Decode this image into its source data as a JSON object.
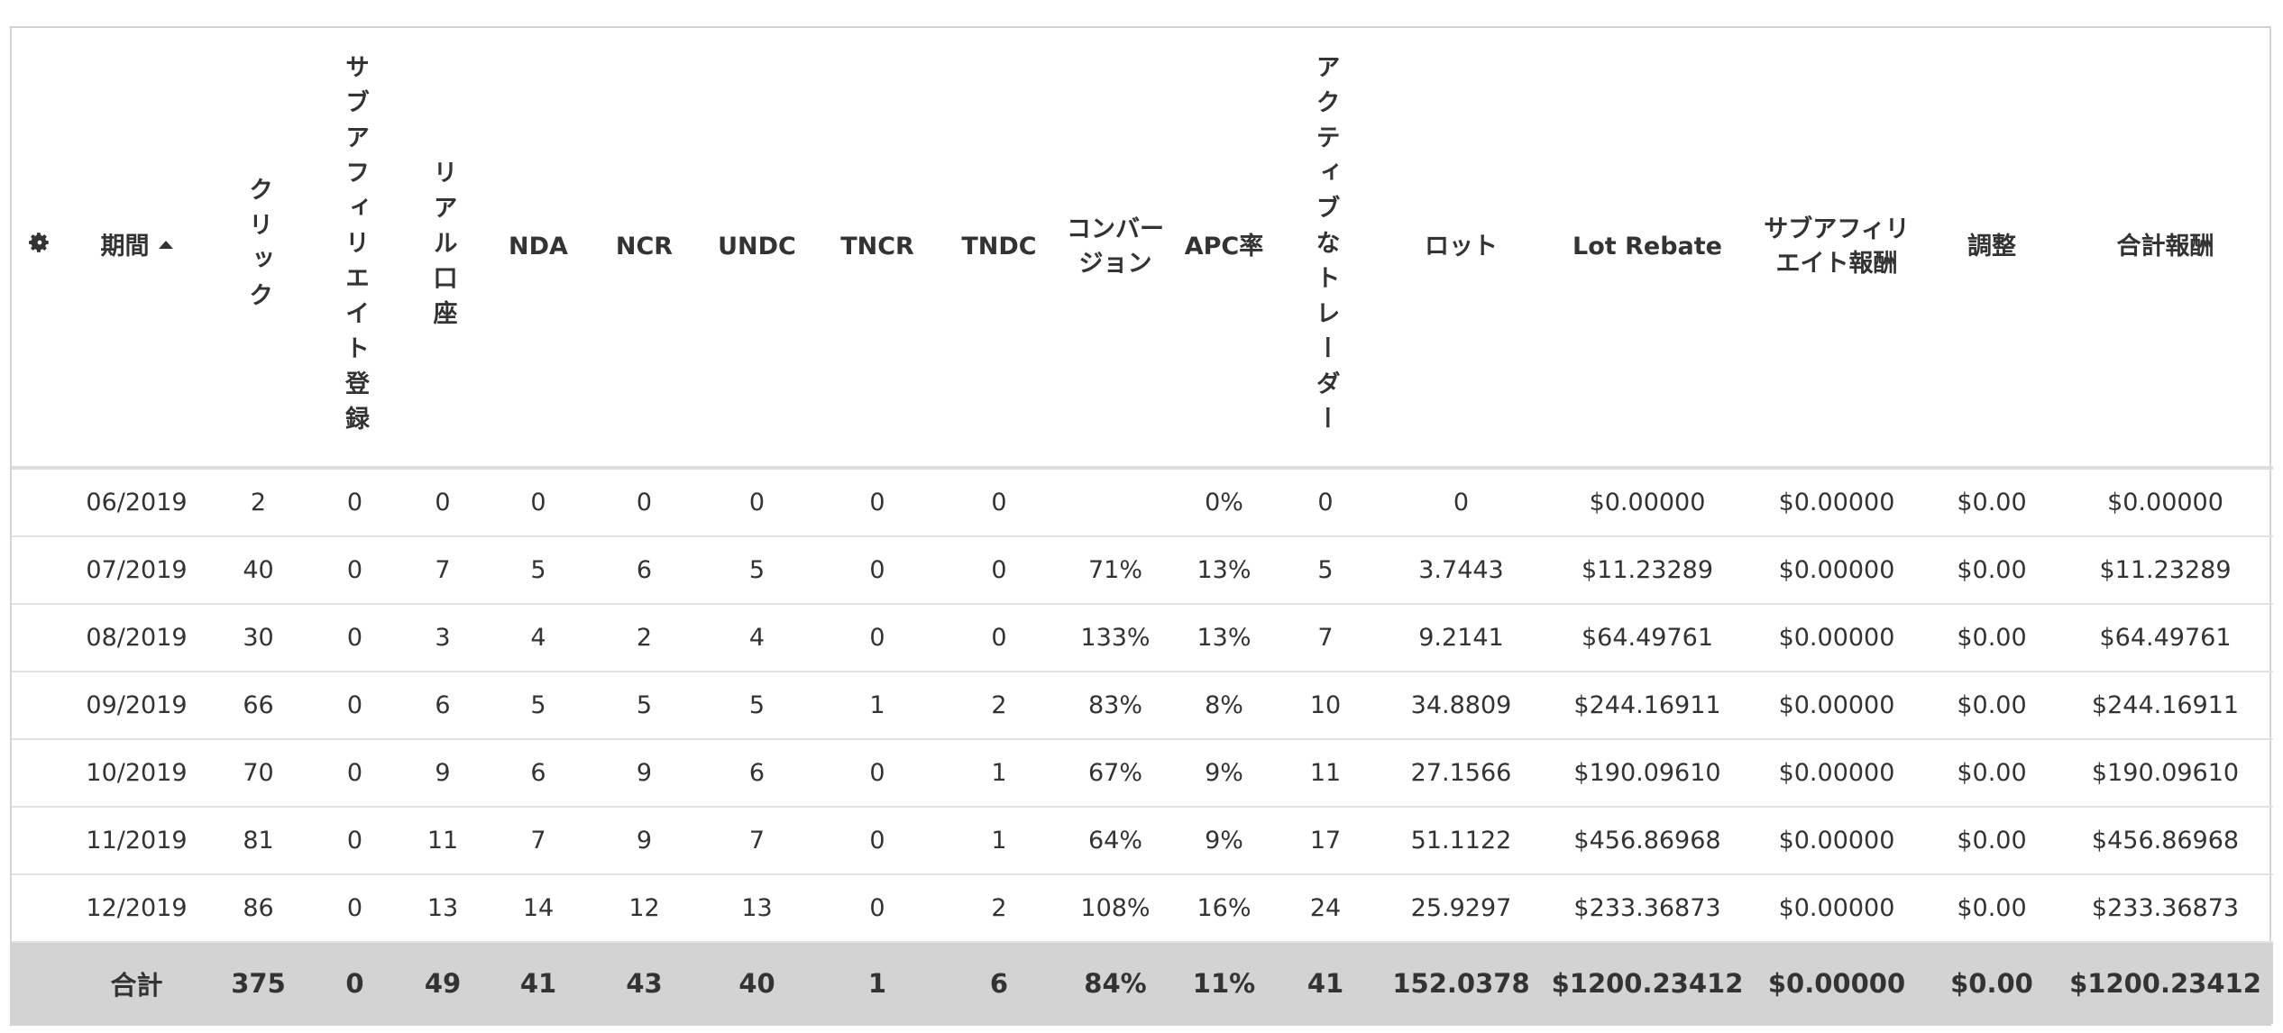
{
  "table": {
    "headers": [
      "期間",
      "クリック",
      "サブアフィリエイト登録",
      "リアル口座",
      "NDA",
      "NCR",
      "UNDC",
      "TNCR",
      "TNDC",
      "コンバージョン",
      "APC率",
      "アクティブなトレーダー",
      "ロット",
      "Lot Rebate",
      "サブアフィリエイト報酬",
      "調整",
      "合計報酬"
    ],
    "rows": [
      [
        "06/2019",
        "2",
        "0",
        "0",
        "0",
        "0",
        "0",
        "0",
        "0",
        null,
        "0%",
        "0",
        "0",
        "$0.00000",
        "$0.00000",
        "$0.00",
        "$0.00000"
      ],
      [
        "07/2019",
        "40",
        "0",
        "7",
        "5",
        "6",
        "5",
        "0",
        "0",
        "71%",
        "13%",
        "5",
        "3.7443",
        "$11.23289",
        "$0.00000",
        "$0.00",
        "$11.23289"
      ],
      [
        "08/2019",
        "30",
        "0",
        "3",
        "4",
        "2",
        "4",
        "0",
        "0",
        "133%",
        "13%",
        "7",
        "9.2141",
        "$64.49761",
        "$0.00000",
        "$0.00",
        "$64.49761"
      ],
      [
        "09/2019",
        "66",
        "0",
        "6",
        "5",
        "5",
        "5",
        "1",
        "2",
        "83%",
        "8%",
        "10",
        "34.8809",
        "$244.16911",
        "$0.00000",
        "$0.00",
        "$244.16911"
      ],
      [
        "10/2019",
        "70",
        "0",
        "9",
        "6",
        "9",
        "6",
        "0",
        "1",
        "67%",
        "9%",
        "11",
        "27.1566",
        "$190.09610",
        "$0.00000",
        "$0.00",
        "$190.09610"
      ],
      [
        "11/2019",
        "81",
        "0",
        "11",
        "7",
        "9",
        "7",
        "0",
        "1",
        "64%",
        "9%",
        "17",
        "51.1122",
        "$456.86968",
        "$0.00000",
        "$0.00",
        "$456.86968"
      ],
      [
        "12/2019",
        "86",
        "0",
        "13",
        "14",
        "12",
        "13",
        "0",
        "2",
        "108%",
        "16%",
        "24",
        "25.9297",
        "$233.36873",
        "$0.00000",
        "$0.00",
        "$233.36873"
      ]
    ],
    "footer": [
      "合計",
      "375",
      "0",
      "49",
      "41",
      "43",
      "40",
      "1",
      "6",
      "84%",
      "11%",
      "41",
      "152.0378",
      "$1200.23412",
      "$0.00000",
      "$0.00",
      "$1200.23412"
    ]
  }
}
